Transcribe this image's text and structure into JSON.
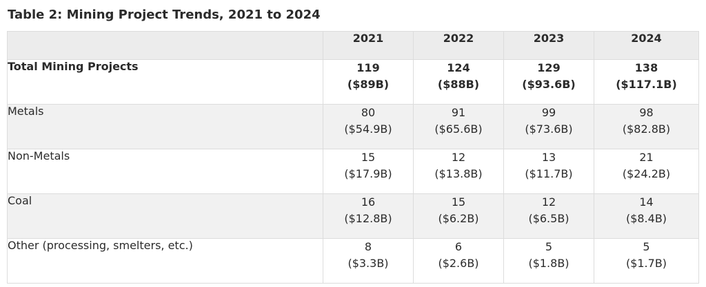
{
  "title": "Table 2: Mining Project Trends, 2021 to 2024",
  "columns": [
    "2021",
    "2022",
    "2023",
    "2024"
  ],
  "rows": [
    {
      "label": "Total Mining Projects",
      "values": [
        {
          "count": "119",
          "amount": "($89B)"
        },
        {
          "count": "124",
          "amount": "($88B)"
        },
        {
          "count": "129",
          "amount": "($93.6B)"
        },
        {
          "count": "138",
          "amount": "($117.1B)"
        }
      ]
    },
    {
      "label": "Metals",
      "values": [
        {
          "count": "80",
          "amount": "($54.9B)"
        },
        {
          "count": "91",
          "amount": "($65.6B)"
        },
        {
          "count": "99",
          "amount": "($73.6B)"
        },
        {
          "count": "98",
          "amount": "($82.8B)"
        }
      ]
    },
    {
      "label": "Non-Metals",
      "values": [
        {
          "count": "15",
          "amount": "($17.9B)"
        },
        {
          "count": "12",
          "amount": "($13.8B)"
        },
        {
          "count": "13",
          "amount": "($11.7B)"
        },
        {
          "count": "21",
          "amount": "($24.2B)"
        }
      ]
    },
    {
      "label": "Coal",
      "values": [
        {
          "count": "16",
          "amount": "($12.8B)"
        },
        {
          "count": "15",
          "amount": "($6.2B)"
        },
        {
          "count": "12",
          "amount": "($6.5B)"
        },
        {
          "count": "14",
          "amount": "($8.4B)"
        }
      ]
    },
    {
      "label": "Other (processing, smelters, etc.)",
      "values": [
        {
          "count": "8",
          "amount": "($3.3B)"
        },
        {
          "count": "6",
          "amount": "($2.6B)"
        },
        {
          "count": "5",
          "amount": "($1.8B)"
        },
        {
          "count": "5",
          "amount": "($1.7B)"
        }
      ]
    }
  ]
}
